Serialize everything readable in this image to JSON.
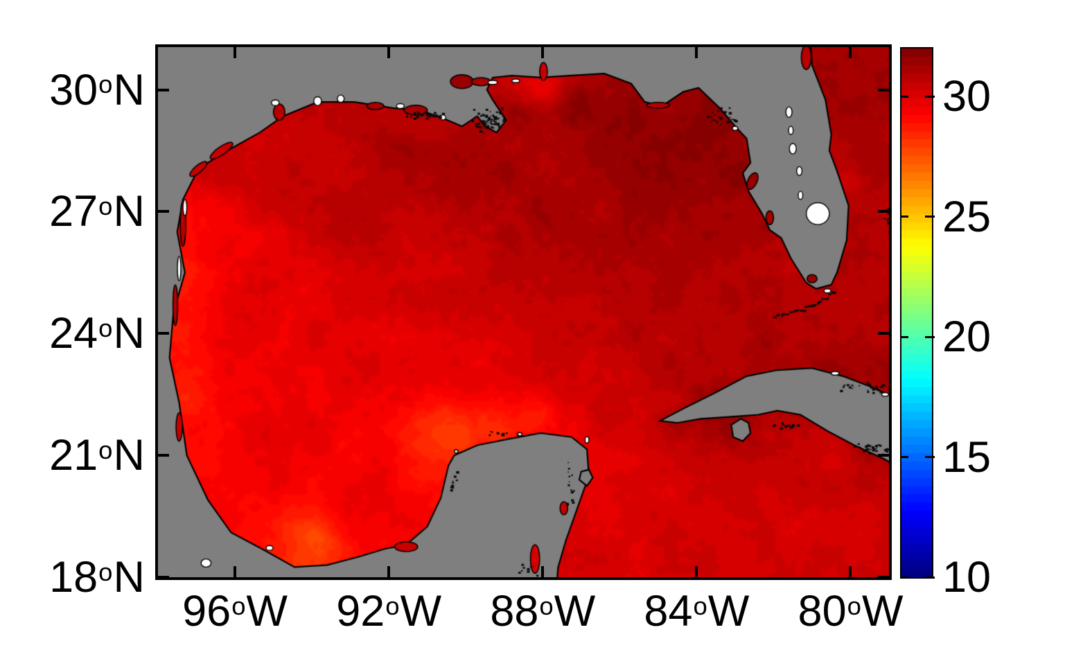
{
  "figure": {
    "description": "Sea surface temperature heatmap of the Gulf of Mexico with jet colorbar",
    "background_color": "#ffffff"
  },
  "chart_data": {
    "type": "heatmap",
    "region": "Gulf of Mexico",
    "title": "",
    "grid": false,
    "x_axis": {
      "tick_labels": [
        {
          "value": "96",
          "degree": "o",
          "suffix": "W"
        },
        {
          "value": "92",
          "degree": "o",
          "suffix": "W"
        },
        {
          "value": "88",
          "degree": "o",
          "suffix": "W"
        },
        {
          "value": "84",
          "degree": "o",
          "suffix": "W"
        },
        {
          "value": "80",
          "degree": "o",
          "suffix": "W"
        }
      ],
      "tick_lon_deg_west": [
        96,
        92,
        88,
        84,
        80
      ],
      "lon_range_deg_west": [
        98.0,
        79.0
      ]
    },
    "y_axis": {
      "tick_labels": [
        {
          "value": "30",
          "degree": "o",
          "suffix": "N"
        },
        {
          "value": "27",
          "degree": "o",
          "suffix": "N"
        },
        {
          "value": "24",
          "degree": "o",
          "suffix": "N"
        },
        {
          "value": "21",
          "degree": "o",
          "suffix": "N"
        },
        {
          "value": "18",
          "degree": "o",
          "suffix": "N"
        }
      ],
      "tick_lat_deg_north": [
        30,
        27,
        24,
        21,
        18
      ],
      "lat_range_deg_north": [
        18.0,
        31.05
      ]
    },
    "colorbar": {
      "tick_labels": [
        "30",
        "25",
        "20",
        "15",
        "10"
      ],
      "tick_values": [
        30,
        25,
        20,
        15,
        10
      ],
      "value_range": [
        10,
        32
      ],
      "colormap": "jet",
      "steps": 64,
      "position": "right"
    },
    "colors": {
      "land": "#7f7f7f",
      "coastline": "#000000",
      "missing_data": "#ffffff",
      "axis_text": "#000000"
    },
    "sst_points_lonW_latN_degC": [
      [
        97.5,
        26.8,
        28.9
      ],
      [
        97.5,
        25.5,
        28.6
      ],
      [
        97.55,
        24.0,
        28.7
      ],
      [
        97.3,
        22.5,
        28.8
      ],
      [
        96.9,
        20.8,
        29.0
      ],
      [
        96.2,
        26.0,
        29.6
      ],
      [
        95.8,
        23.5,
        29.7
      ],
      [
        95.0,
        21.0,
        29.9
      ],
      [
        96.3,
        28.2,
        30.3
      ],
      [
        95.8,
        18.9,
        29.3
      ],
      [
        93.9,
        18.7,
        27.8
      ],
      [
        92.8,
        19.5,
        29.6
      ],
      [
        94.5,
        27.8,
        30.7
      ],
      [
        93.0,
        27.0,
        30.6
      ],
      [
        95.0,
        25.0,
        30.0
      ],
      [
        91.5,
        28.3,
        31.2
      ],
      [
        89.8,
        28.3,
        31.2
      ],
      [
        88.3,
        29.2,
        31.4
      ],
      [
        87.0,
        29.6,
        31.6
      ],
      [
        85.6,
        29.3,
        31.7
      ],
      [
        91.3,
        29.2,
        30.6
      ],
      [
        88.0,
        30.15,
        29.8
      ],
      [
        83.9,
        29.4,
        31.8
      ],
      [
        83.2,
        28.2,
        31.6
      ],
      [
        82.6,
        26.6,
        31.3
      ],
      [
        81.9,
        25.3,
        31.0
      ],
      [
        87.5,
        26.8,
        31.2
      ],
      [
        85.8,
        25.6,
        31.1
      ],
      [
        84.8,
        27.3,
        31.5
      ],
      [
        89.0,
        25.5,
        30.7
      ],
      [
        91.0,
        25.8,
        30.4
      ],
      [
        86.0,
        28.0,
        31.4
      ],
      [
        81.5,
        24.2,
        31.0
      ],
      [
        83.0,
        23.8,
        31.0
      ],
      [
        84.8,
        23.0,
        30.8
      ],
      [
        86.3,
        22.0,
        30.4
      ],
      [
        90.3,
        21.5,
        27.9
      ],
      [
        89.3,
        21.7,
        28.5
      ],
      [
        88.2,
        21.85,
        28.8
      ],
      [
        87.3,
        21.8,
        29.7
      ],
      [
        89.8,
        22.8,
        29.8
      ],
      [
        87.9,
        23.2,
        30.5
      ],
      [
        87.2,
        19.5,
        30.0
      ],
      [
        85.5,
        19.0,
        30.1
      ],
      [
        83.5,
        19.5,
        30.1
      ],
      [
        81.5,
        19.5,
        30.2
      ],
      [
        79.5,
        19.5,
        30.2
      ],
      [
        80.5,
        20.8,
        30.4
      ],
      [
        83.2,
        22.0,
        31.6
      ],
      [
        79.5,
        21.3,
        31.4
      ],
      [
        79.8,
        22.85,
        31.4
      ],
      [
        81.5,
        23.6,
        31.0
      ],
      [
        80.3,
        27.5,
        30.4
      ],
      [
        79.4,
        28.3,
        31.2
      ],
      [
        79.2,
        30.3,
        31.2
      ],
      [
        79.8,
        25.0,
        30.8
      ],
      [
        79.05,
        26.5,
        30.9
      ]
    ],
    "geo": {
      "mainland": [
        [
          81.05,
          31.3
        ],
        [
          81.0,
          30.6
        ],
        [
          80.65,
          29.75
        ],
        [
          80.5,
          28.9
        ],
        [
          80.55,
          28.5
        ],
        [
          80.35,
          28.0
        ],
        [
          80.05,
          27.15
        ],
        [
          80.1,
          26.3
        ],
        [
          80.35,
          25.5
        ],
        [
          80.5,
          25.2
        ],
        [
          80.9,
          25.1
        ],
        [
          81.15,
          25.25
        ],
        [
          81.55,
          25.85
        ],
        [
          81.8,
          26.35
        ],
        [
          81.95,
          26.45
        ],
        [
          82.1,
          26.55
        ],
        [
          82.3,
          26.95
        ],
        [
          82.65,
          27.5
        ],
        [
          82.8,
          27.95
        ],
        [
          82.6,
          28.2
        ],
        [
          82.7,
          28.8
        ],
        [
          82.95,
          29.05
        ],
        [
          83.4,
          29.55
        ],
        [
          83.95,
          30.05
        ],
        [
          84.35,
          29.95
        ],
        [
          84.9,
          29.6
        ],
        [
          85.35,
          29.7
        ],
        [
          85.7,
          30.15
        ],
        [
          86.4,
          30.4
        ],
        [
          87.3,
          30.35
        ],
        [
          88.05,
          30.3
        ],
        [
          88.8,
          30.35
        ],
        [
          89.3,
          30.3
        ],
        [
          89.45,
          30.0
        ],
        [
          89.3,
          29.75
        ],
        [
          88.95,
          29.25
        ],
        [
          89.2,
          28.95
        ],
        [
          89.5,
          29.1
        ],
        [
          89.7,
          29.35
        ],
        [
          90.1,
          29.1
        ],
        [
          90.6,
          29.3
        ],
        [
          91.2,
          29.5
        ],
        [
          91.9,
          29.55
        ],
        [
          92.9,
          29.7
        ],
        [
          93.85,
          29.7
        ],
        [
          94.75,
          29.35
        ],
        [
          95.35,
          28.95
        ],
        [
          96.3,
          28.45
        ],
        [
          96.95,
          28.05
        ],
        [
          97.35,
          27.3
        ],
        [
          97.5,
          26.5
        ],
        [
          97.3,
          25.5
        ],
        [
          97.6,
          24.5
        ],
        [
          97.7,
          23.4
        ],
        [
          97.45,
          22.3
        ],
        [
          97.25,
          21.0
        ],
        [
          96.7,
          19.9
        ],
        [
          96.1,
          19.1
        ],
        [
          95.3,
          18.7
        ],
        [
          94.45,
          18.25
        ],
        [
          93.6,
          18.3
        ],
        [
          92.8,
          18.5
        ],
        [
          92.1,
          18.7
        ],
        [
          91.55,
          18.8
        ],
        [
          91.0,
          19.25
        ],
        [
          90.65,
          19.95
        ],
        [
          90.45,
          20.75
        ],
        [
          90.3,
          21.0
        ],
        [
          89.7,
          21.25
        ],
        [
          88.9,
          21.4
        ],
        [
          88.05,
          21.55
        ],
        [
          87.25,
          21.45
        ],
        [
          86.85,
          21.15
        ],
        [
          86.8,
          20.5
        ],
        [
          87.1,
          19.7
        ],
        [
          87.4,
          18.9
        ],
        [
          87.6,
          18.25
        ],
        [
          87.65,
          17.7
        ],
        [
          98.4,
          17.7
        ],
        [
          98.4,
          31.3
        ]
      ],
      "cuba": [
        [
          84.95,
          21.85
        ],
        [
          84.35,
          22.15
        ],
        [
          83.5,
          22.55
        ],
        [
          82.7,
          22.95
        ],
        [
          81.9,
          23.1
        ],
        [
          81.0,
          23.15
        ],
        [
          80.2,
          22.95
        ],
        [
          79.5,
          22.7
        ],
        [
          78.9,
          22.45
        ],
        [
          78.5,
          22.3
        ],
        [
          78.5,
          20.55
        ],
        [
          79.1,
          20.9
        ],
        [
          79.9,
          21.25
        ],
        [
          80.6,
          21.6
        ],
        [
          81.3,
          22.0
        ],
        [
          81.9,
          22.1
        ],
        [
          82.4,
          22.0
        ],
        [
          83.1,
          21.95
        ],
        [
          83.9,
          21.9
        ],
        [
          84.5,
          21.8
        ]
      ],
      "isla_juventud": [
        [
          83.1,
          21.75
        ],
        [
          82.85,
          21.9
        ],
        [
          82.65,
          21.8
        ],
        [
          82.6,
          21.55
        ],
        [
          82.8,
          21.35
        ],
        [
          83.05,
          21.45
        ]
      ],
      "cozumel": [
        [
          87.0,
          20.6
        ],
        [
          86.8,
          20.65
        ],
        [
          86.7,
          20.45
        ],
        [
          86.85,
          20.25
        ],
        [
          87.05,
          20.4
        ]
      ]
    },
    "water_inlets_lon_lat_rx_ry_rot_sst": [
      [
        90.1,
        30.2,
        0.3,
        0.17,
        0,
        31.5
      ],
      [
        87.98,
        30.45,
        0.1,
        0.22,
        0,
        30.6
      ],
      [
        94.85,
        29.45,
        0.15,
        0.2,
        0,
        30.8
      ],
      [
        96.35,
        28.5,
        0.35,
        0.1,
        -35,
        30.6
      ],
      [
        96.95,
        28.05,
        0.28,
        0.09,
        -40,
        30.6
      ],
      [
        97.35,
        26.7,
        0.07,
        0.55,
        0,
        30.9
      ],
      [
        97.55,
        24.7,
        0.06,
        0.5,
        0,
        30.9
      ],
      [
        97.45,
        21.7,
        0.08,
        0.35,
        0,
        30.6
      ],
      [
        91.55,
        18.75,
        0.3,
        0.12,
        0,
        30.6
      ],
      [
        82.55,
        27.75,
        0.12,
        0.22,
        25,
        31.4
      ],
      [
        82.1,
        26.85,
        0.1,
        0.17,
        0,
        31.3
      ],
      [
        81.0,
        25.35,
        0.13,
        0.1,
        0,
        31.5
      ],
      [
        88.2,
        18.45,
        0.12,
        0.35,
        0,
        30.2
      ],
      [
        87.45,
        19.7,
        0.1,
        0.16,
        0,
        30.3
      ],
      [
        81.15,
        30.8,
        0.13,
        0.3,
        0,
        30.9
      ],
      [
        85.0,
        29.62,
        0.3,
        0.07,
        0,
        30.9
      ],
      [
        91.3,
        29.5,
        0.3,
        0.12,
        0,
        31.0
      ],
      [
        92.35,
        29.6,
        0.22,
        0.09,
        0,
        31.0
      ],
      [
        89.6,
        30.2,
        0.25,
        0.1,
        0,
        31.2
      ]
    ],
    "white_patches_lon_lat_rx_ry": [
      [
        80.85,
        26.95,
        0.3,
        0.27
      ],
      [
        81.6,
        29.45,
        0.08,
        0.13
      ],
      [
        81.55,
        29.0,
        0.06,
        0.1
      ],
      [
        81.5,
        28.55,
        0.09,
        0.13
      ],
      [
        81.33,
        28.0,
        0.07,
        0.11
      ],
      [
        81.3,
        27.4,
        0.06,
        0.1
      ],
      [
        93.85,
        29.72,
        0.1,
        0.11
      ],
      [
        93.25,
        29.78,
        0.09,
        0.09
      ],
      [
        94.95,
        29.68,
        0.1,
        0.07
      ],
      [
        89.3,
        30.18,
        0.12,
        0.05
      ],
      [
        88.7,
        30.22,
        0.1,
        0.045
      ],
      [
        90.6,
        29.32,
        0.08,
        0.06
      ],
      [
        91.7,
        29.6,
        0.1,
        0.06
      ],
      [
        97.3,
        27.1,
        0.05,
        0.2
      ],
      [
        97.45,
        25.6,
        0.045,
        0.3
      ],
      [
        96.75,
        18.35,
        0.13,
        0.1
      ],
      [
        95.1,
        18.72,
        0.09,
        0.06
      ],
      [
        90.25,
        21.1,
        0.05,
        0.04
      ],
      [
        88.6,
        21.52,
        0.06,
        0.04
      ],
      [
        86.85,
        21.38,
        0.05,
        0.08
      ],
      [
        83.0,
        29.05,
        0.07,
        0.05
      ],
      [
        80.6,
        25.05,
        0.09,
        0.05
      ],
      [
        80.4,
        23.02,
        0.1,
        0.045
      ],
      [
        79.1,
        22.5,
        0.09,
        0.045
      ]
    ],
    "speck_clusters_lon_lat_sx_sy_count": [
      [
        89.4,
        29.25,
        0.5,
        0.35,
        70
      ],
      [
        91.1,
        29.4,
        0.55,
        0.15,
        30
      ],
      [
        83.4,
        29.35,
        0.45,
        0.3,
        25
      ],
      [
        79.6,
        22.7,
        0.9,
        0.15,
        35
      ],
      [
        79.4,
        21.2,
        0.6,
        0.18,
        30
      ],
      [
        81.7,
        21.75,
        0.45,
        0.1,
        15
      ],
      [
        87.3,
        20.3,
        0.12,
        0.7,
        14
      ],
      [
        90.35,
        20.3,
        0.12,
        0.5,
        10
      ],
      [
        79.05,
        26.8,
        0.12,
        0.5,
        12
      ],
      [
        88.4,
        18.2,
        0.3,
        0.2,
        10
      ],
      [
        89.0,
        21.55,
        0.6,
        0.06,
        10
      ]
    ],
    "florida_keys_arc": {
      "from": [
        80.45,
        25.05
      ],
      "to": [
        82.0,
        24.45
      ],
      "count": 26
    }
  }
}
